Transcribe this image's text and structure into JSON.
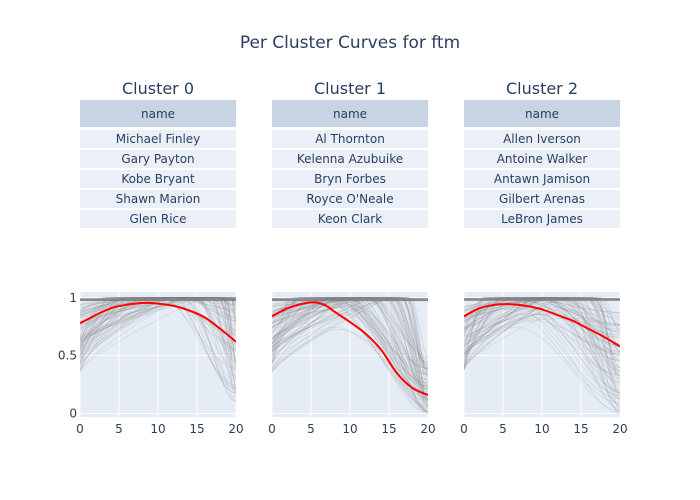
{
  "title": "Per Cluster Curves for ftm",
  "table_header": "name",
  "clusters": [
    {
      "title": "Cluster 0",
      "names": [
        "Michael Finley",
        "Gary Payton",
        "Kobe Bryant",
        "Shawn Marion",
        "Glen Rice"
      ]
    },
    {
      "title": "Cluster 1",
      "names": [
        "Al Thornton",
        "Kelenna Azubuike",
        "Bryn Forbes",
        "Royce O'Neale",
        "Keon Clark"
      ]
    },
    {
      "title": "Cluster 2",
      "names": [
        "Allen Iverson",
        "Antoine Walker",
        "Antawn Jamison",
        "Gilbert Arenas",
        "LeBron James"
      ]
    }
  ],
  "colors": {
    "mean_curve": "#ff0000",
    "background_curves": "#7f7f7f",
    "plot_bg": "#e5ecf6",
    "header_bg": "#c8d4e3",
    "cell_bg": "#ebf0f8"
  },
  "chart_data": [
    {
      "type": "line",
      "title": "Cluster 0",
      "xlim": [
        0,
        20
      ],
      "ylim": [
        -0.03,
        1.05
      ],
      "xticks": [
        0,
        5,
        10,
        15,
        20
      ],
      "yticks": [
        0,
        0.5,
        1
      ],
      "ytick_labels": [
        "0",
        "0.5",
        "1"
      ],
      "grid": true,
      "series": [
        {
          "x": [
            0,
            2,
            4,
            6,
            8,
            9,
            10,
            12,
            14,
            16,
            18,
            20
          ],
          "y": [
            0.78,
            0.85,
            0.91,
            0.94,
            0.955,
            0.955,
            0.95,
            0.93,
            0.89,
            0.83,
            0.73,
            0.62
          ]
        }
      ]
    },
    {
      "type": "line",
      "title": "Cluster 1",
      "xlim": [
        0,
        20
      ],
      "ylim": [
        -0.03,
        1.05
      ],
      "xticks": [
        0,
        5,
        10,
        15,
        20
      ],
      "yticks": [
        0,
        0.5,
        1
      ],
      "ytick_labels": [
        "0",
        "0.5",
        "1"
      ],
      "grid": true,
      "series": [
        {
          "x": [
            0,
            2,
            4,
            5,
            6,
            7,
            8,
            10,
            12,
            14,
            16,
            18,
            20
          ],
          "y": [
            0.84,
            0.91,
            0.95,
            0.96,
            0.955,
            0.93,
            0.88,
            0.79,
            0.69,
            0.55,
            0.35,
            0.22,
            0.16
          ]
        }
      ]
    },
    {
      "type": "line",
      "title": "Cluster 2",
      "xlim": [
        0,
        20
      ],
      "ylim": [
        -0.03,
        1.05
      ],
      "xticks": [
        0,
        5,
        10,
        15,
        20
      ],
      "yticks": [
        0,
        0.5,
        1
      ],
      "ytick_labels": [
        "0",
        "0.5",
        "1"
      ],
      "grid": true,
      "series": [
        {
          "x": [
            0,
            2,
            4,
            5,
            6,
            8,
            10,
            12,
            14,
            16,
            18,
            20
          ],
          "y": [
            0.84,
            0.91,
            0.94,
            0.945,
            0.945,
            0.93,
            0.9,
            0.85,
            0.8,
            0.73,
            0.66,
            0.58
          ]
        }
      ]
    }
  ]
}
